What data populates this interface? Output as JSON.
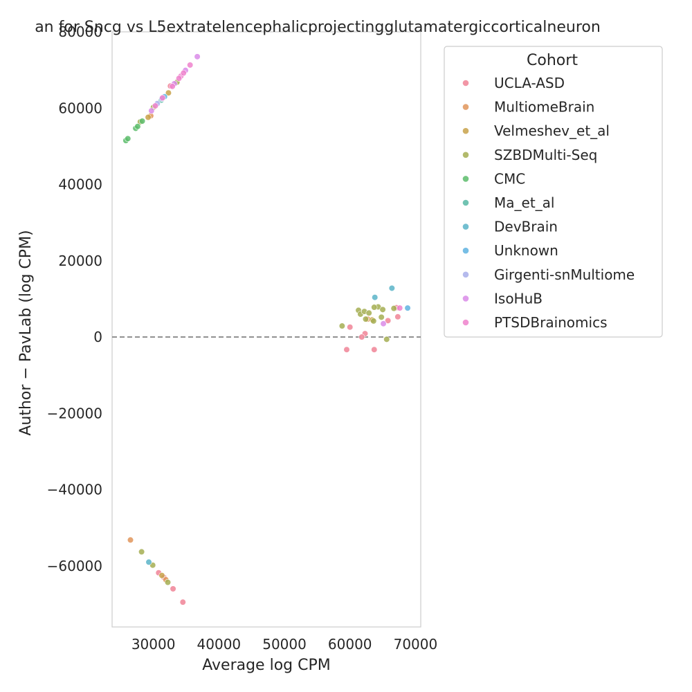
{
  "chart_data": {
    "type": "scatter",
    "title": "an for Sncg vs L5extratelencephalicprojectingglutamatergiccorticalneuron",
    "xlabel": "Average log CPM",
    "ylabel": "Author − PavLab (log CPM)",
    "xlim": [
      23700,
      70800
    ],
    "ylim": [
      -76000,
      80000
    ],
    "xticks": [
      30000,
      40000,
      50000,
      60000,
      70000
    ],
    "yticks": [
      80000,
      60000,
      40000,
      20000,
      0,
      -20000,
      -40000,
      -60000
    ],
    "xtick_labels": [
      "30000",
      "40000",
      "50000",
      "60000",
      "70000"
    ],
    "ytick_labels": [
      "80000",
      "60000",
      "40000",
      "20000",
      "0",
      "−20000",
      "−40000",
      "−60000"
    ],
    "reference_line": {
      "y": 0,
      "style": "dashed",
      "color": "#808080"
    },
    "grid": false,
    "legend": {
      "title": "Cohort",
      "placement": "outside-right"
    },
    "series": [
      {
        "name": "UCLA-ASD",
        "color": "#f08496",
        "points": [
          [
            60000,
            2600
          ],
          [
            62300,
            900
          ],
          [
            61800,
            0
          ],
          [
            59500,
            -3300
          ],
          [
            63700,
            -3300
          ],
          [
            65800,
            4300
          ],
          [
            67300,
            5300
          ],
          [
            67100,
            7700
          ],
          [
            32600,
            65800
          ],
          [
            33000,
            -66000
          ],
          [
            34500,
            -69500
          ],
          [
            31600,
            -63000
          ],
          [
            30800,
            -61800
          ]
        ]
      },
      {
        "name": "MultiomeBrain",
        "color": "#e0955a",
        "points": [
          [
            26500,
            -53200
          ],
          [
            62700,
            4700
          ],
          [
            29600,
            58000
          ],
          [
            31900,
            -63600
          ]
        ]
      },
      {
        "name": "Velmeshev_et_al",
        "color": "#c8a24a",
        "points": [
          [
            63400,
            4500
          ],
          [
            29200,
            57600
          ],
          [
            32300,
            64000
          ],
          [
            31300,
            -62500
          ]
        ]
      },
      {
        "name": "SZBDMulti-Seq",
        "color": "#a4ae52",
        "points": [
          [
            58800,
            2900
          ],
          [
            61300,
            7000
          ],
          [
            61600,
            6000
          ],
          [
            62200,
            6700
          ],
          [
            62900,
            6300
          ],
          [
            63600,
            4200
          ],
          [
            64300,
            7900
          ],
          [
            64800,
            5200
          ],
          [
            65000,
            7200
          ],
          [
            65600,
            -600
          ],
          [
            66700,
            7500
          ],
          [
            62400,
            4700
          ],
          [
            63700,
            7800
          ],
          [
            28200,
            -56300
          ],
          [
            29900,
            -59800
          ],
          [
            32200,
            -64300
          ],
          [
            28000,
            56400
          ],
          [
            30000,
            60200
          ],
          [
            33600,
            66800
          ]
        ]
      },
      {
        "name": "CMC",
        "color": "#5cbc6b",
        "points": [
          [
            25800,
            51500
          ],
          [
            26100,
            52000
          ],
          [
            27300,
            54700
          ],
          [
            27600,
            55200
          ],
          [
            28300,
            56600
          ]
        ]
      },
      {
        "name": "Ma_et_al",
        "color": "#58b8a4",
        "points": [
          [
            31200,
            62100
          ]
        ]
      },
      {
        "name": "DevBrain",
        "color": "#5ab4c8",
        "points": [
          [
            63800,
            10400
          ],
          [
            66400,
            12800
          ],
          [
            29300,
            -59000
          ]
        ]
      },
      {
        "name": "Unknown",
        "color": "#5fb3e0",
        "points": [
          [
            68800,
            7600
          ],
          [
            31700,
            63000
          ]
        ]
      },
      {
        "name": "Girgenti-snMultiome",
        "color": "#a8aeea",
        "points": [
          [
            30600,
            61200
          ],
          [
            31300,
            62500
          ]
        ]
      },
      {
        "name": "IsoHuB",
        "color": "#d98be8",
        "points": [
          [
            36700,
            73500
          ],
          [
            34900,
            69900
          ],
          [
            65100,
            3500
          ],
          [
            33200,
            66400
          ],
          [
            29700,
            59300
          ]
        ]
      },
      {
        "name": "PTSDBrainomics",
        "color": "#ee82cc",
        "points": [
          [
            35600,
            71300
          ],
          [
            34200,
            68400
          ],
          [
            34600,
            69200
          ],
          [
            33900,
            67800
          ],
          [
            67600,
            7600
          ],
          [
            32900,
            65700
          ],
          [
            31400,
            62700
          ],
          [
            30300,
            60600
          ]
        ]
      }
    ]
  }
}
